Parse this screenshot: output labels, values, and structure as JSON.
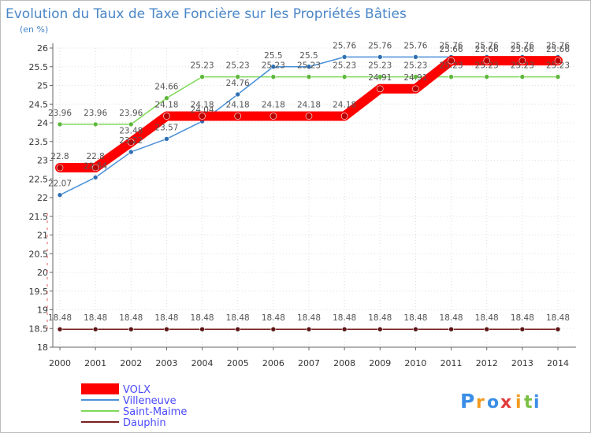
{
  "chart_data": {
    "type": "line",
    "title": "Evolution du Taux de Taxe Foncière sur les Propriétés Bâties",
    "subtitle": "(en %)",
    "xlabel": "",
    "ylabel": "",
    "ylim": [
      18,
      26
    ],
    "yticks": [
      "18",
      "18.5",
      "19",
      "19.5",
      "20",
      "20.5",
      "21",
      "21.5",
      "22",
      "22.5",
      "23",
      "23.5",
      "24",
      "24.5",
      "25",
      "25.5",
      "26"
    ],
    "categories": [
      "2000",
      "2001",
      "2002",
      "2003",
      "2004",
      "2005",
      "2006",
      "2007",
      "2008",
      "2009",
      "2010",
      "2011",
      "2012",
      "2013",
      "2014"
    ],
    "series": [
      {
        "name": "VOLX",
        "color": "#ff0000",
        "marker_color": "#b80000",
        "values": [
          22.8,
          22.8,
          23.48,
          24.18,
          24.18,
          24.18,
          24.18,
          24.18,
          24.18,
          24.91,
          24.91,
          25.66,
          25.66,
          25.66,
          25.66
        ],
        "labels": [
          "22.8",
          "22.8",
          "23.48",
          "24.18",
          "24.18",
          "24.18",
          "24.18",
          "24.18",
          "24.18",
          "24.91",
          "24.91",
          "25.66",
          "25.66",
          "25.66",
          "25.66"
        ]
      },
      {
        "name": "Villeneuve",
        "color": "#4a90d9",
        "marker_color": "#2f6fb3",
        "values": [
          22.07,
          22.54,
          23.22,
          23.57,
          24.04,
          24.76,
          25.5,
          25.5,
          25.76,
          25.76,
          25.76,
          25.76,
          25.76,
          25.76,
          25.76
        ],
        "labels": [
          "22.07",
          "22.54",
          "23.22",
          "23.57",
          "24.04",
          "24.76",
          "25.5",
          "25.5",
          "25.76",
          "25.76",
          "25.76",
          "25.76",
          "25.76",
          "25.76",
          "25.76"
        ]
      },
      {
        "name": "Saint-Maime",
        "color": "#7ed957",
        "marker_color": "#5cb83a",
        "values": [
          23.96,
          23.96,
          23.96,
          24.66,
          25.23,
          25.23,
          25.23,
          25.23,
          25.23,
          25.23,
          25.23,
          25.23,
          25.23,
          25.23,
          25.23
        ],
        "labels": [
          "23.96",
          "23.96",
          "23.96",
          "24.66",
          "25.23",
          "25.23",
          "25.23",
          "25.23",
          "25.23",
          "25.23",
          "25.23",
          "25.23",
          "25.23",
          "25.23",
          "25.23"
        ]
      },
      {
        "name": "Dauphin",
        "color": "#7a1f1f",
        "marker_color": "#5c1414",
        "values": [
          18.48,
          18.48,
          18.48,
          18.48,
          18.48,
          18.48,
          18.48,
          18.48,
          18.48,
          18.48,
          18.48,
          18.48,
          18.48,
          18.48,
          18.48
        ],
        "labels": [
          "18.48",
          "18.48",
          "18.48",
          "18.48",
          "18.48",
          "18.48",
          "18.48",
          "18.48",
          "18.48",
          "18.48",
          "18.48",
          "18.48",
          "18.48",
          "18.48",
          "18.48"
        ]
      }
    ],
    "legend": [
      {
        "name": "VOLX",
        "color": "#ff0000",
        "text_color": "#4a4aff"
      },
      {
        "name": "Villeneuve",
        "color": "#4a90d9",
        "text_color": "#4a4aff"
      },
      {
        "name": "Saint-Maime",
        "color": "#7ed957",
        "text_color": "#4a4aff"
      },
      {
        "name": "Dauphin",
        "color": "#7a1f1f",
        "text_color": "#4a4aff"
      }
    ]
  },
  "brand": {
    "letters": [
      "P",
      "r",
      "o",
      "x",
      "i",
      "t",
      "i"
    ],
    "colors": [
      "#3a8ee6",
      "#f29a1f",
      "#3a8ee6",
      "#e23b3b",
      "#f29a1f",
      "#7bc043",
      "#3a8ee6"
    ]
  }
}
